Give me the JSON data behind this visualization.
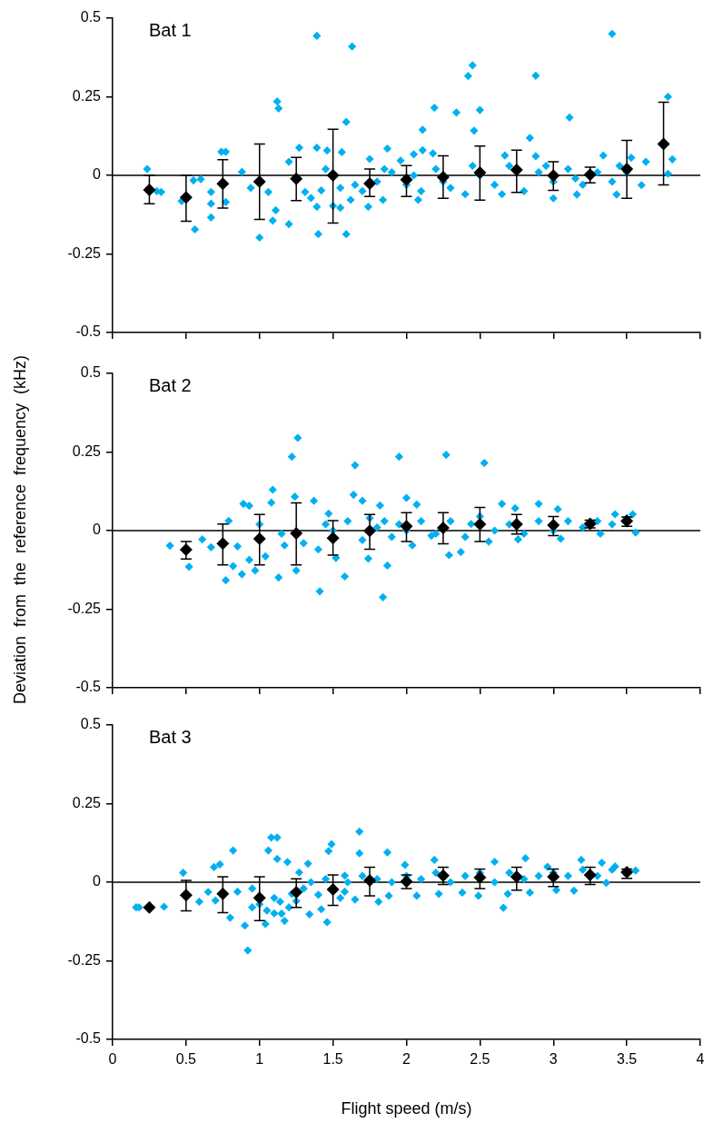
{
  "chart_data": [
    {
      "type": "scatter",
      "title": "Bat 1",
      "xlim": [
        0,
        4
      ],
      "xticks": [
        0,
        0.5,
        1,
        1.5,
        2,
        2.5,
        3,
        3.5,
        4
      ],
      "ylim": [
        -0.5,
        0.5
      ],
      "yticks": [
        -0.5,
        -0.25,
        0,
        0.25,
        0.5
      ],
      "tick_labels": "y",
      "marker": "diamond",
      "ref_lines": [
        {
          "axis": "y",
          "value": 0,
          "color": "#000000"
        }
      ],
      "series": [
        {
          "color": "#000000",
          "x": [
            0.25,
            0.5,
            0.75,
            1,
            1.25,
            1.5,
            1.75,
            2,
            2.25,
            2.5,
            2.75,
            3,
            3.25,
            3.5,
            3.75
          ],
          "values": [
            -0.046,
            -0.07,
            -0.027,
            -0.02,
            -0.011,
            0,
            -0.026,
            -0.014,
            -0.006,
            0.009,
            0.017,
            -0.001,
            0.002,
            0.02,
            0.1
          ],
          "errors": [
            [
              -0.09,
              0
            ],
            [
              -0.146,
              0
            ],
            [
              -0.104,
              0.05
            ],
            [
              -0.14,
              0.1
            ],
            [
              -0.08,
              0.057
            ],
            [
              -0.152,
              0.147
            ],
            [
              -0.067,
              0.02
            ],
            [
              -0.067,
              0.031
            ],
            [
              -0.073,
              0.062
            ],
            [
              -0.079,
              0.093
            ],
            [
              -0.054,
              0.08
            ],
            [
              -0.048,
              0.043
            ],
            [
              -0.024,
              0.026
            ],
            [
              -0.073,
              0.111
            ],
            [
              -0.03,
              0.233
            ]
          ]
        },
        {
          "color": "#00b0f0",
          "x": [
            1.39,
            1.63,
            3.4,
            2.45,
            2.42,
            2.88,
            1.12,
            1.13,
            2.19,
            2.34,
            2.5,
            3.78,
            3.11,
            1.59,
            2.11,
            2.46,
            2.84,
            0.235,
            0.74,
            0.77,
            0.88,
            0.3,
            0.33,
            0.47,
            0.56,
            0.55,
            0.6,
            0.67,
            0.67,
            0.67,
            0.77,
            0.94,
            1,
            1.06,
            1.09,
            1.11,
            1.2,
            1.2,
            1.27,
            1.31,
            1.35,
            1.39,
            1.39,
            1.4,
            1.42,
            1.46,
            1.56,
            1.5,
            1.55,
            1.59,
            1.62,
            1.75,
            1.74,
            1.87,
            1.84,
            1.96,
            2.05,
            2.08,
            2.11,
            2.18,
            2.67,
            2.88,
            3,
            3.34,
            3.16,
            3.43,
            3.6,
            3.63,
            3.81,
            3.78,
            3.53,
            1.8,
            1.9,
            2,
            2.1,
            2.2,
            2.3,
            2.4,
            2.5,
            2.6,
            2.7,
            2.8,
            2.9,
            3,
            3.1,
            3.2,
            3.3,
            3.4,
            3.5,
            1.85,
            2.05,
            2.25,
            2.45,
            2.65,
            2.95,
            3.15,
            3.45,
            1.7,
            1.65,
            1.55,
            1.45
          ],
          "values": [
            0.444,
            0.41,
            0.45,
            0.35,
            0.316,
            0.317,
            0.235,
            0.213,
            0.215,
            0.2,
            0.208,
            0.25,
            0.184,
            0.17,
            0.145,
            0.142,
            0.119,
            0.02,
            0.075,
            0.075,
            0.011,
            -0.05,
            -0.053,
            -0.082,
            -0.172,
            -0.016,
            -0.012,
            -0.053,
            -0.09,
            -0.134,
            -0.085,
            -0.04,
            -0.198,
            -0.053,
            -0.144,
            -0.111,
            0.043,
            -0.155,
            0.088,
            -0.053,
            -0.072,
            0.088,
            -0.1,
            -0.187,
            -0.048,
            0.079,
            0.074,
            -0.097,
            -0.103,
            -0.187,
            -0.078,
            0.052,
            -0.1,
            0.085,
            -0.078,
            0.047,
            0.067,
            -0.078,
            0.08,
            0.07,
            0.063,
            0.061,
            -0.073,
            0.063,
            -0.061,
            -0.061,
            -0.031,
            0.043,
            0.051,
            0.005,
            0.056,
            -0.02,
            0.01,
            -0.03,
            -0.05,
            0.02,
            -0.04,
            -0.06,
            0,
            -0.03,
            0.03,
            -0.05,
            0.01,
            -0.02,
            0.02,
            -0.03,
            0.01,
            -0.02,
            0.01,
            0.02,
            0,
            -0.02,
            0.03,
            -0.06,
            0.03,
            -0.01,
            0.03,
            -0.05,
            -0.03,
            -0.04,
            0.02
          ]
        }
      ]
    },
    {
      "type": "scatter",
      "title": "Bat 2",
      "ylabel": "Deviation  from  the  reference  frequency  (kHz)",
      "xlim": [
        0,
        4
      ],
      "xticks": [
        0,
        0.5,
        1,
        1.5,
        2,
        2.5,
        3,
        3.5,
        4
      ],
      "ylim": [
        -0.5,
        0.5
      ],
      "yticks": [
        -0.5,
        -0.25,
        0,
        0.25,
        0.5
      ],
      "tick_labels": "y",
      "marker": "diamond",
      "ref_lines": [
        {
          "axis": "y",
          "value": 0,
          "color": "#000000"
        }
      ],
      "series": [
        {
          "color": "#000000",
          "x": [
            0.5,
            0.75,
            1,
            1.25,
            1.5,
            1.75,
            2,
            2.25,
            2.5,
            2.75,
            3,
            3.25,
            3.5
          ],
          "values": [
            -0.061,
            -0.041,
            -0.026,
            -0.009,
            -0.024,
            -0.001,
            0.014,
            0.009,
            0.02,
            0.02,
            0.017,
            0.022,
            0.03
          ],
          "errors": [
            [
              -0.09,
              -0.035
            ],
            [
              -0.109,
              0.021
            ],
            [
              -0.109,
              0.051
            ],
            [
              -0.109,
              0.088
            ],
            [
              -0.078,
              0.032
            ],
            [
              -0.059,
              0.051
            ],
            [
              -0.035,
              0.057
            ],
            [
              -0.042,
              0.057
            ],
            [
              -0.035,
              0.074
            ],
            [
              -0.011,
              0.051
            ],
            [
              -0.016,
              0.045
            ],
            [
              0.009,
              0.033
            ],
            [
              0.014,
              0.043
            ]
          ]
        },
        {
          "color": "#00b0f0",
          "x": [
            1.26,
            1.22,
            1.95,
            2.27,
            1.65,
            2.53,
            1.09,
            1.08,
            0.89,
            0.93,
            0.79,
            0.39,
            0.52,
            0.61,
            0.67,
            0.77,
            0.82,
            0.88,
            0.93,
            0.97,
            1.04,
            1.13,
            1.17,
            1.24,
            1.25,
            1.37,
            1.41,
            1.47,
            1.52,
            1.58,
            1.64,
            1.7,
            1.74,
            1.82,
            1.84,
            1.87,
            2,
            2.07,
            2.04,
            2.17,
            2.29,
            2.37,
            2.44,
            2.56,
            2.65,
            2.74,
            2.9,
            2.76,
            3.05,
            3.03,
            3.32,
            3.42,
            3.56,
            3.54,
            1.5,
            1.6,
            1.7,
            1.75,
            1.8,
            1.85,
            1.9,
            1.95,
            2,
            2.1,
            2.2,
            2.3,
            2.4,
            2.5,
            2.6,
            2.7,
            2.8,
            2.9,
            3,
            3.1,
            3.2,
            3.3,
            3.4,
            3.5,
            1.3,
            1.4,
            1.45,
            1.15,
            1,
            0.85
          ],
          "values": [
            0.295,
            0.235,
            0.235,
            0.241,
            0.208,
            0.215,
            0.13,
            0.089,
            0.085,
            0.079,
            0.031,
            -0.048,
            -0.115,
            -0.028,
            -0.053,
            -0.158,
            -0.113,
            -0.139,
            -0.093,
            -0.127,
            -0.082,
            -0.149,
            -0.047,
            0.108,
            -0.127,
            0.095,
            -0.193,
            0.054,
            -0.087,
            -0.146,
            0.114,
            0.095,
            -0.089,
            0.08,
            -0.212,
            -0.111,
            0.104,
            0.083,
            -0.047,
            -0.016,
            -0.078,
            -0.068,
            0.021,
            -0.035,
            0.085,
            0.071,
            0.085,
            -0.028,
            -0.026,
            0.068,
            -0.01,
            0.052,
            -0.006,
            0.052,
            0,
            0.03,
            -0.03,
            0.04,
            0.01,
            0.03,
            -0.02,
            0.02,
            0,
            0.03,
            -0.01,
            0.03,
            -0.02,
            0.045,
            0,
            0.02,
            -0.01,
            0.03,
            0,
            0.03,
            0.01,
            0.03,
            0.02,
            0.04,
            -0.04,
            -0.06,
            0.02,
            -0.01,
            0.02,
            -0.05
          ]
        }
      ]
    },
    {
      "type": "scatter",
      "title": "Bat 3",
      "xlabel": "Flight speed (m/s)",
      "xlim": [
        0,
        4
      ],
      "xticks": [
        0,
        0.5,
        1,
        1.5,
        2,
        2.5,
        3,
        3.5,
        4
      ],
      "ylim": [
        -0.5,
        0.5
      ],
      "yticks": [
        -0.5,
        -0.25,
        0,
        0.25,
        0.5
      ],
      "marker": "diamond",
      "ref_lines": [
        {
          "axis": "y",
          "value": 0,
          "color": "#000000"
        }
      ],
      "series": [
        {
          "color": "#000000",
          "x": [
            0.25,
            0.5,
            0.75,
            1,
            1.25,
            1.5,
            1.75,
            2,
            2.25,
            2.5,
            2.75,
            3,
            3.25,
            3.5
          ],
          "values": [
            -0.08,
            -0.041,
            -0.037,
            -0.05,
            -0.032,
            -0.023,
            0.006,
            0.002,
            0.021,
            0.015,
            0.017,
            0.017,
            0.023,
            0.032
          ],
          "errors": [
            null,
            [
              -0.091,
              0.006
            ],
            [
              -0.097,
              0.017
            ],
            [
              -0.122,
              0.017
            ],
            [
              -0.08,
              0.011
            ],
            [
              -0.074,
              0.023
            ],
            [
              -0.043,
              0.048
            ],
            [
              -0.02,
              0.023
            ],
            [
              -0.007,
              0.048
            ],
            [
              -0.02,
              0.042
            ],
            [
              -0.025,
              0.048
            ],
            [
              -0.014,
              0.042
            ],
            [
              -0.007,
              0.048
            ],
            [
              0.012,
              0.042
            ]
          ]
        },
        {
          "color": "#00b0f0",
          "x": [
            0.16,
            0.18,
            0.35,
            0.48,
            0.59,
            0.65,
            0.69,
            0.73,
            0.82,
            0.7,
            0.8,
            0.9,
            0.92,
            0.95,
            1.04,
            1.06,
            1.08,
            1.12,
            1.12,
            1.19,
            1.17,
            1.1,
            1.14,
            1.22,
            1.27,
            1.33,
            1.34,
            1.42,
            1.46,
            1.49,
            1.47,
            1.58,
            1.65,
            1.68,
            1.68,
            1.81,
            1.87,
            1.88,
            1.99,
            2.07,
            2.19,
            2.22,
            2.38,
            2.49,
            2.6,
            2.66,
            2.69,
            2.81,
            2.84,
            2.96,
            3.02,
            3.14,
            3.19,
            3.33,
            3.36,
            3.56,
            1,
            1.05,
            1.1,
            1.15,
            1.2,
            1.25,
            1.3,
            1.35,
            1.4,
            1.45,
            1.58,
            1.55,
            1.6,
            1.7,
            1.8,
            1.9,
            2,
            2.1,
            2.2,
            2.3,
            2.4,
            2.5,
            2.6,
            2.7,
            2.8,
            2.9,
            3,
            3.1,
            3.2,
            3.3,
            3.4,
            3.42,
            0.85,
            0.95
          ],
          "values": [
            -0.08,
            -0.08,
            -0.078,
            0.03,
            -0.062,
            -0.031,
            0.048,
            0.057,
            0.101,
            -0.058,
            -0.113,
            -0.138,
            -0.217,
            -0.08,
            -0.133,
            0.101,
            0.142,
            0.142,
            0.074,
            0.064,
            -0.123,
            -0.099,
            -0.062,
            -0.037,
            0.031,
            0.059,
            -0.102,
            -0.086,
            -0.127,
            0.121,
            0.099,
            0.021,
            -0.055,
            0.161,
            0.092,
            -0.062,
            0.095,
            -0.043,
            0.055,
            -0.043,
            0.071,
            -0.037,
            -0.033,
            -0.043,
            0.065,
            -0.081,
            -0.037,
            0.076,
            -0.033,
            0.049,
            -0.025,
            -0.027,
            0.071,
            0.062,
            -0.002,
            0.037,
            -0.07,
            -0.09,
            -0.05,
            -0.1,
            -0.08,
            -0.06,
            -0.02,
            0,
            -0.04,
            0.01,
            -0.03,
            -0.05,
            0,
            0.02,
            0.01,
            0,
            0.02,
            0.01,
            0.03,
            0,
            0.02,
            0.03,
            0,
            0.03,
            0.01,
            0.02,
            0.03,
            0.02,
            0.04,
            0.02,
            0.04,
            0.05,
            -0.03,
            -0.02
          ]
        }
      ]
    }
  ]
}
